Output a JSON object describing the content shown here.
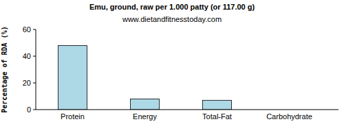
{
  "chart_data": {
    "type": "bar",
    "title": "Emu, ground, raw per 1.000 patty (or 117.00 g)",
    "subtitle": "www.dietandfitnesstoday.com",
    "y_label": "Percentage of RDA (%)",
    "categories": [
      "Protein",
      "Energy",
      "Total-Fat",
      "Carbohydrate"
    ],
    "values": [
      48,
      8,
      7,
      0
    ],
    "color": "#add8e6",
    "ylim": [
      0,
      60
    ],
    "yticks": [
      0,
      20,
      40,
      60
    ],
    "grid": false
  }
}
